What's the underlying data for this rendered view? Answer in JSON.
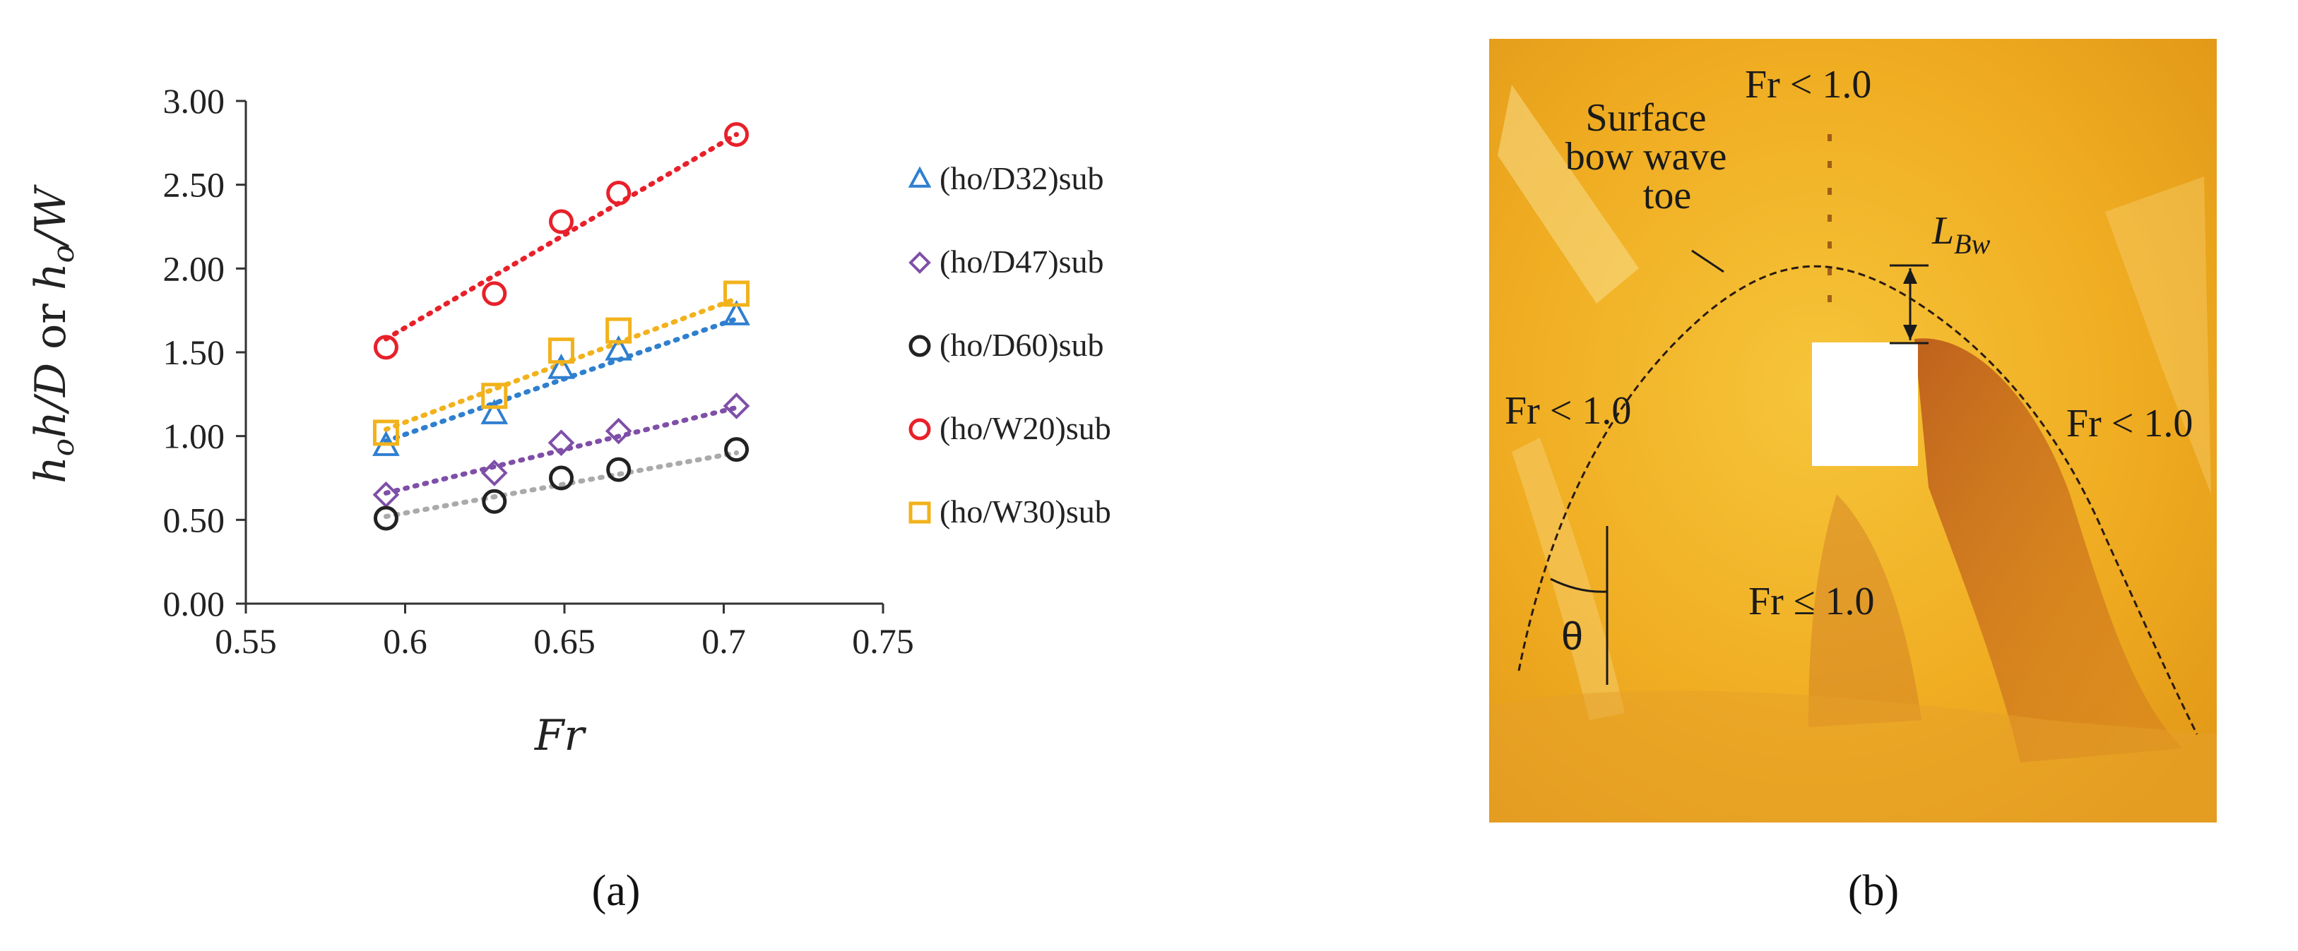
{
  "panel_a": {
    "caption": "(a)"
  },
  "panel_b": {
    "caption": "(b)",
    "labels": {
      "fr_top": "Fr < 1.0",
      "fr_left": "Fr < 1.0",
      "fr_right": "Fr < 1.0",
      "fr_center": "Fr ≤ 1.0",
      "bow_wave_line1": "Surface",
      "bow_wave_line2": "bow wave",
      "bow_wave_line3": "toe",
      "lbw_main": "L",
      "lbw_sub": "Bw",
      "theta": "θ"
    },
    "colors": {
      "photo_base": "#f2b21c",
      "photo_dark": "#c7641a",
      "obstacle": "#ffffff"
    }
  },
  "chart_data": {
    "type": "scatter",
    "xlabel": "Fr",
    "ylabel": "h_o h/D or h_o/W",
    "xlim": [
      0.55,
      0.75
    ],
    "ylim": [
      0.0,
      3.0
    ],
    "x_ticks": [
      "0.55",
      "0.6",
      "0.65",
      "0.7",
      "0.75"
    ],
    "y_ticks": [
      "0.00",
      "0.50",
      "1.00",
      "1.50",
      "2.00",
      "2.50",
      "3.00"
    ],
    "grid": false,
    "legend_position": "right",
    "series": [
      {
        "name": "(ho/D32)sub",
        "marker": "triangle",
        "color": "#2f7fcf",
        "x": [
          0.594,
          0.628,
          0.649,
          0.667,
          0.704
        ],
        "y": [
          0.94,
          1.13,
          1.4,
          1.51,
          1.72
        ],
        "trend": [
          [
            0.594,
            0.97
          ],
          [
            0.704,
            1.7
          ]
        ]
      },
      {
        "name": "(ho/D47)sub",
        "marker": "diamond",
        "color": "#7f4fa8",
        "x": [
          0.594,
          0.628,
          0.649,
          0.667,
          0.704
        ],
        "y": [
          0.65,
          0.78,
          0.96,
          1.03,
          1.18
        ],
        "trend": [
          [
            0.594,
            0.66
          ],
          [
            0.704,
            1.17
          ]
        ]
      },
      {
        "name": "(ho/D60)sub",
        "marker": "circle",
        "color": "#222222",
        "trend_color": "#aaaaaa",
        "x": [
          0.594,
          0.628,
          0.649,
          0.667,
          0.704
        ],
        "y": [
          0.51,
          0.61,
          0.75,
          0.8,
          0.92
        ],
        "trend": [
          [
            0.594,
            0.52
          ],
          [
            0.704,
            0.9
          ]
        ]
      },
      {
        "name": "(ho/W20)sub",
        "marker": "circle",
        "color": "#e8202a",
        "x": [
          0.594,
          0.628,
          0.649,
          0.667,
          0.704
        ],
        "y": [
          1.53,
          1.85,
          2.28,
          2.45,
          2.8
        ],
        "trend": [
          [
            0.594,
            1.58
          ],
          [
            0.704,
            2.8
          ]
        ]
      },
      {
        "name": "(ho/W30)sub",
        "marker": "square",
        "color": "#f2b21c",
        "x": [
          0.594,
          0.628,
          0.649,
          0.667,
          0.704
        ],
        "y": [
          1.02,
          1.24,
          1.51,
          1.63,
          1.85
        ],
        "trend": [
          [
            0.594,
            1.04
          ],
          [
            0.704,
            1.82
          ]
        ]
      }
    ]
  }
}
